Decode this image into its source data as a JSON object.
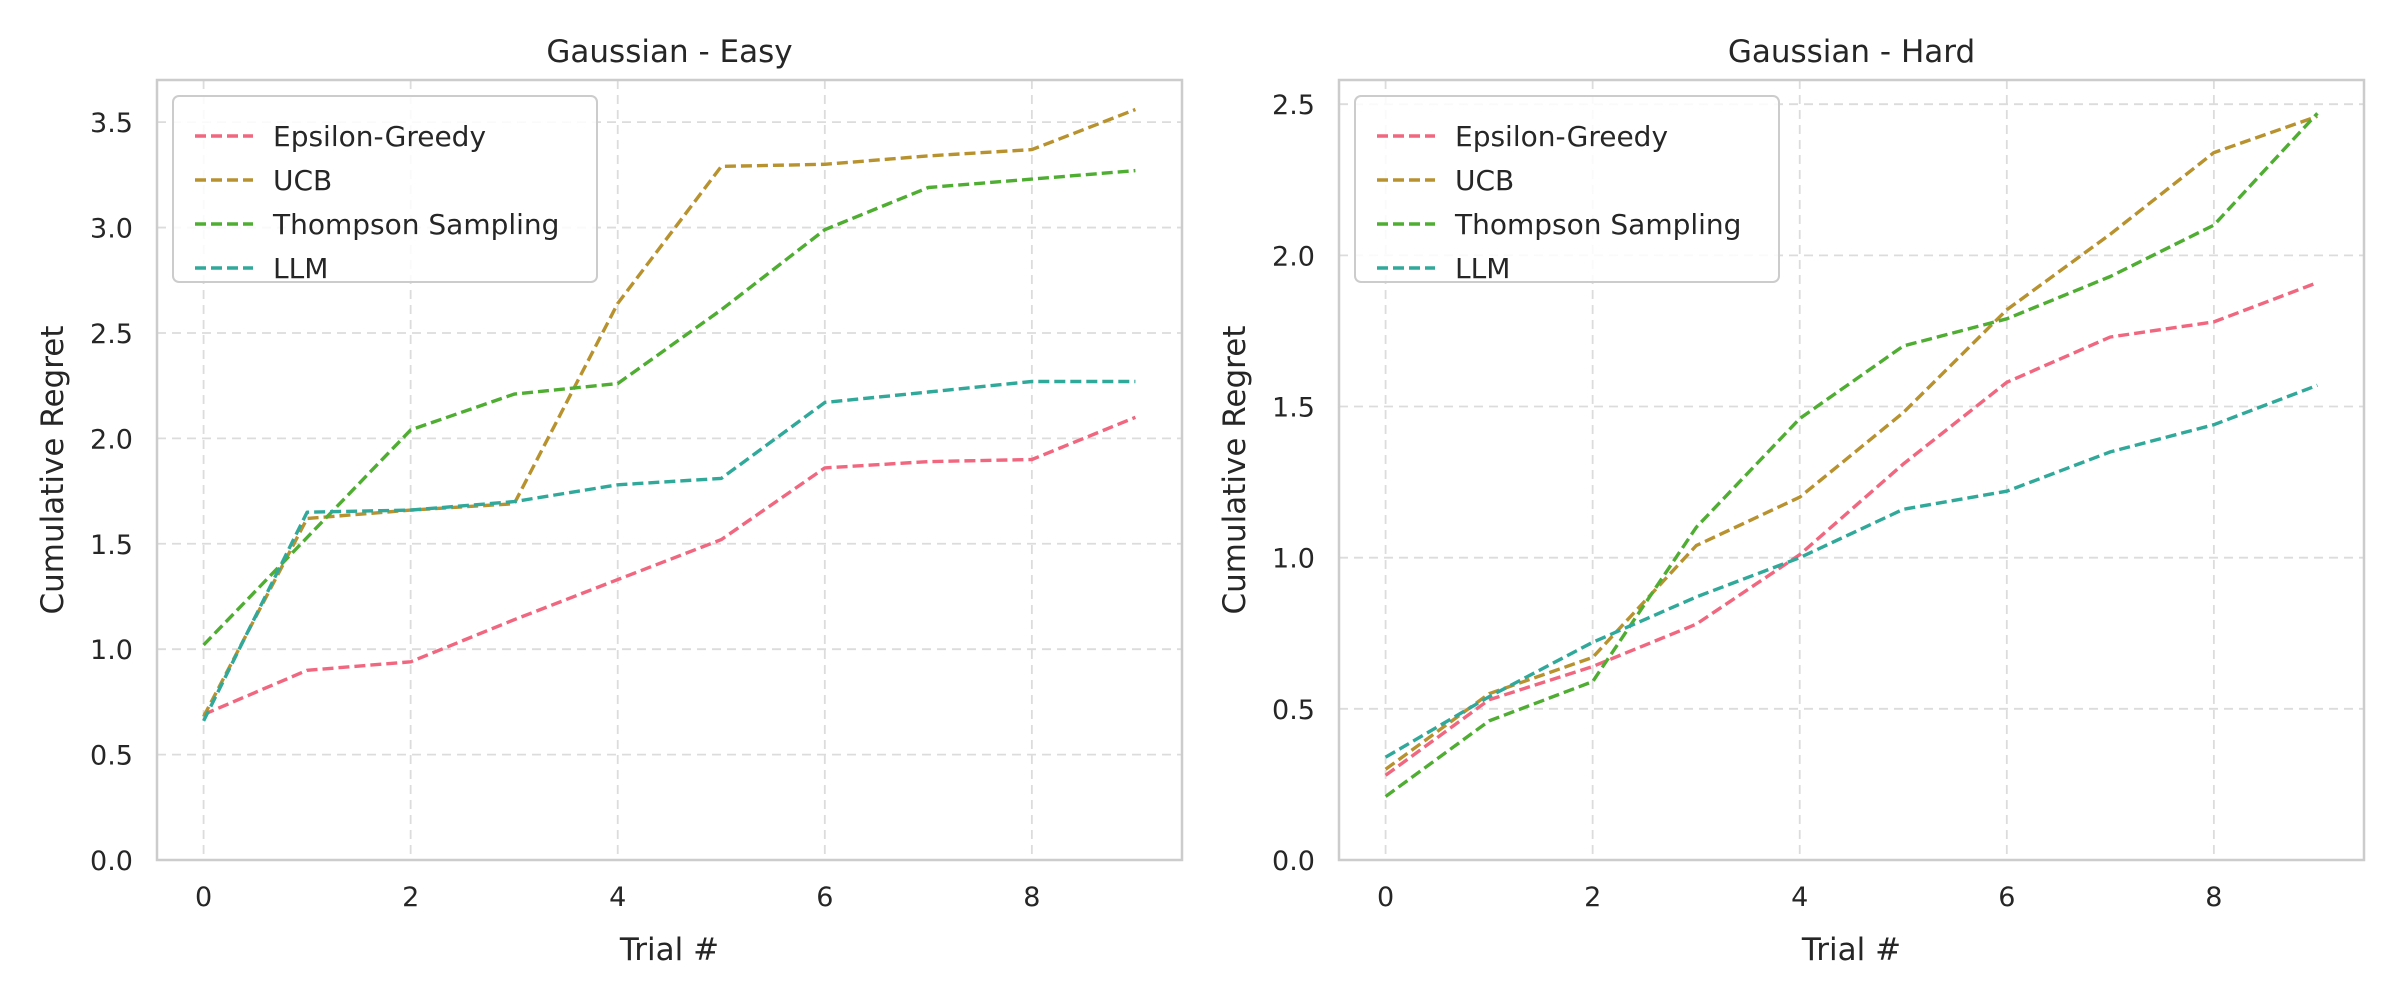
{
  "chart_data": [
    {
      "type": "line",
      "title": "Gaussian - Easy",
      "xlabel": "Trial #",
      "ylabel": "Cumulative Regret",
      "xlim": [
        -0.45,
        9.45
      ],
      "ylim": [
        0,
        3.7
      ],
      "xticks": [
        0,
        2,
        4,
        6,
        8
      ],
      "yticks": [
        0.0,
        0.5,
        1.0,
        1.5,
        2.0,
        2.5,
        3.0,
        3.5
      ],
      "grid": true,
      "legend": "upper-left",
      "x": [
        0,
        1,
        2,
        3,
        4,
        5,
        6,
        7,
        8,
        9
      ],
      "series": [
        {
          "name": "Epsilon-Greedy",
          "color": "#f0677f",
          "values": [
            0.69,
            0.9,
            0.94,
            1.14,
            1.33,
            1.52,
            1.86,
            1.89,
            1.9,
            2.1
          ]
        },
        {
          "name": "UCB",
          "color": "#b8922f",
          "values": [
            0.68,
            1.62,
            1.66,
            1.69,
            2.64,
            3.29,
            3.3,
            3.34,
            3.37,
            3.56
          ]
        },
        {
          "name": "Thompson Sampling",
          "color": "#4fad32",
          "values": [
            1.02,
            1.53,
            2.04,
            2.21,
            2.26,
            2.61,
            2.99,
            3.19,
            3.23,
            3.27
          ]
        },
        {
          "name": "LLM",
          "color": "#30a89a",
          "values": [
            0.66,
            1.65,
            1.66,
            1.7,
            1.78,
            1.81,
            2.17,
            2.22,
            2.27,
            2.27
          ]
        }
      ]
    },
    {
      "type": "line",
      "title": "Gaussian - Hard",
      "xlabel": "Trial #",
      "ylabel": "Cumulative Regret",
      "xlim": [
        -0.45,
        9.45
      ],
      "ylim": [
        0,
        2.58
      ],
      "xticks": [
        0,
        2,
        4,
        6,
        8
      ],
      "yticks": [
        0.0,
        0.5,
        1.0,
        1.5,
        2.0,
        2.5
      ],
      "grid": true,
      "legend": "upper-left",
      "x": [
        0,
        1,
        2,
        3,
        4,
        5,
        6,
        7,
        8,
        9
      ],
      "series": [
        {
          "name": "Epsilon-Greedy",
          "color": "#f0677f",
          "values": [
            0.28,
            0.53,
            0.64,
            0.78,
            1.01,
            1.31,
            1.58,
            1.73,
            1.78,
            1.91
          ]
        },
        {
          "name": "UCB",
          "color": "#b8922f",
          "values": [
            0.3,
            0.55,
            0.67,
            1.04,
            1.2,
            1.48,
            1.82,
            2.07,
            2.34,
            2.46
          ]
        },
        {
          "name": "Thompson Sampling",
          "color": "#4fad32",
          "values": [
            0.21,
            0.46,
            0.59,
            1.1,
            1.46,
            1.7,
            1.79,
            1.93,
            2.1,
            2.47
          ]
        },
        {
          "name": "LLM",
          "color": "#30a89a",
          "values": [
            0.34,
            0.54,
            0.72,
            0.87,
            1.0,
            1.16,
            1.22,
            1.35,
            1.44,
            1.57
          ]
        }
      ]
    }
  ]
}
